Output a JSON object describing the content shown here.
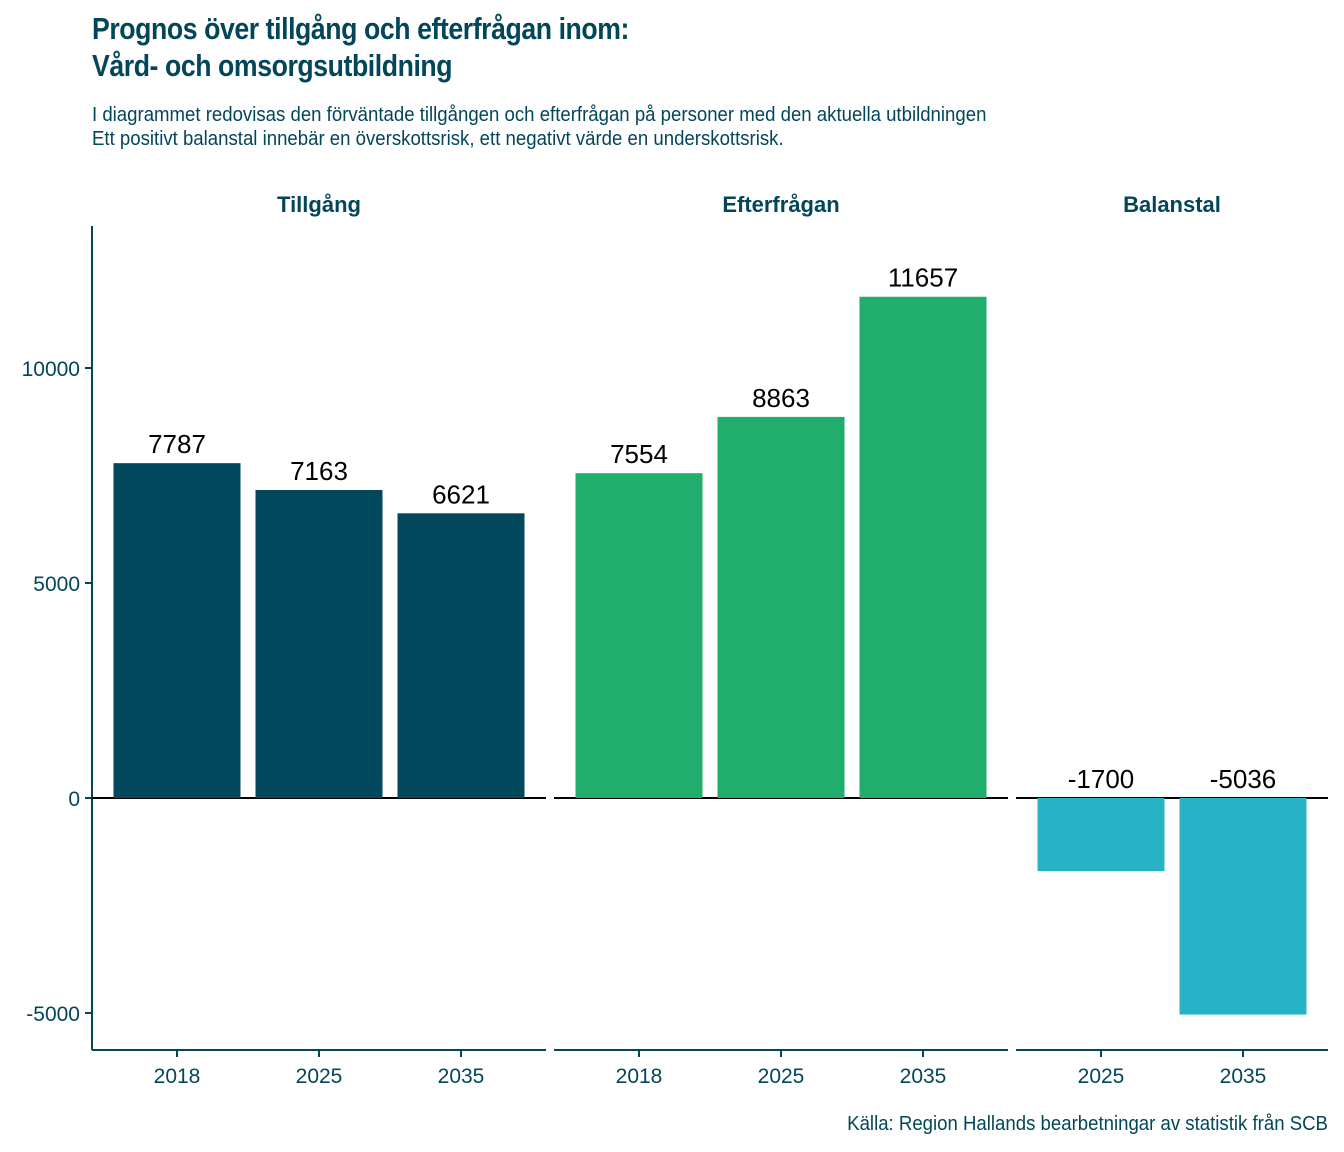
{
  "header": {
    "title_line1": "Prognos över tillgång och efterfrågan inom:",
    "title_line2": "Vård- och omsorgsutbildning",
    "subtitle_line1": "I diagrammet redovisas den förväntade tillgången och efterfrågan på personer med den aktuella utbildningen",
    "subtitle_line2": "Ett positivt balanstal innebär en överskottsrisk, ett negativt värde en underskottsrisk."
  },
  "caption": "Källa: Region Hallands bearbetningar av statistik från SCB",
  "colors": {
    "text": "#03465a",
    "tillgang": "#02485c",
    "efterfragan": "#21ae6d",
    "balanstal": "#27b2c5",
    "zero_line": "#000000"
  },
  "chart_data": {
    "type": "bar",
    "title": "Prognos över tillgång och efterfrågan inom: Vård- och omsorgsutbildning",
    "xlabel": "",
    "ylabel": "",
    "ylim": [
      -5800,
      13300
    ],
    "yticks": [
      -5000,
      0,
      5000,
      10000
    ],
    "ytick_labels": [
      "-5000",
      "0",
      "5000",
      "10000"
    ],
    "grid": false,
    "legend": "none",
    "facets": [
      {
        "name": "Tillgång",
        "color_key": "tillgang",
        "categories": [
          "2018",
          "2025",
          "2035"
        ],
        "values": [
          7787,
          7163,
          6621
        ],
        "labels": [
          "7787",
          "7163",
          "6621"
        ]
      },
      {
        "name": "Efterfrågan",
        "color_key": "efterfragan",
        "categories": [
          "2018",
          "2025",
          "2035"
        ],
        "values": [
          7554,
          8863,
          11657
        ],
        "labels": [
          "7554",
          "8863",
          "11657"
        ]
      },
      {
        "name": "Balanstal",
        "color_key": "balanstal",
        "categories": [
          "2025",
          "2035"
        ],
        "values": [
          -1700,
          -5036
        ],
        "labels": [
          "-1700",
          "-5036"
        ]
      }
    ]
  }
}
